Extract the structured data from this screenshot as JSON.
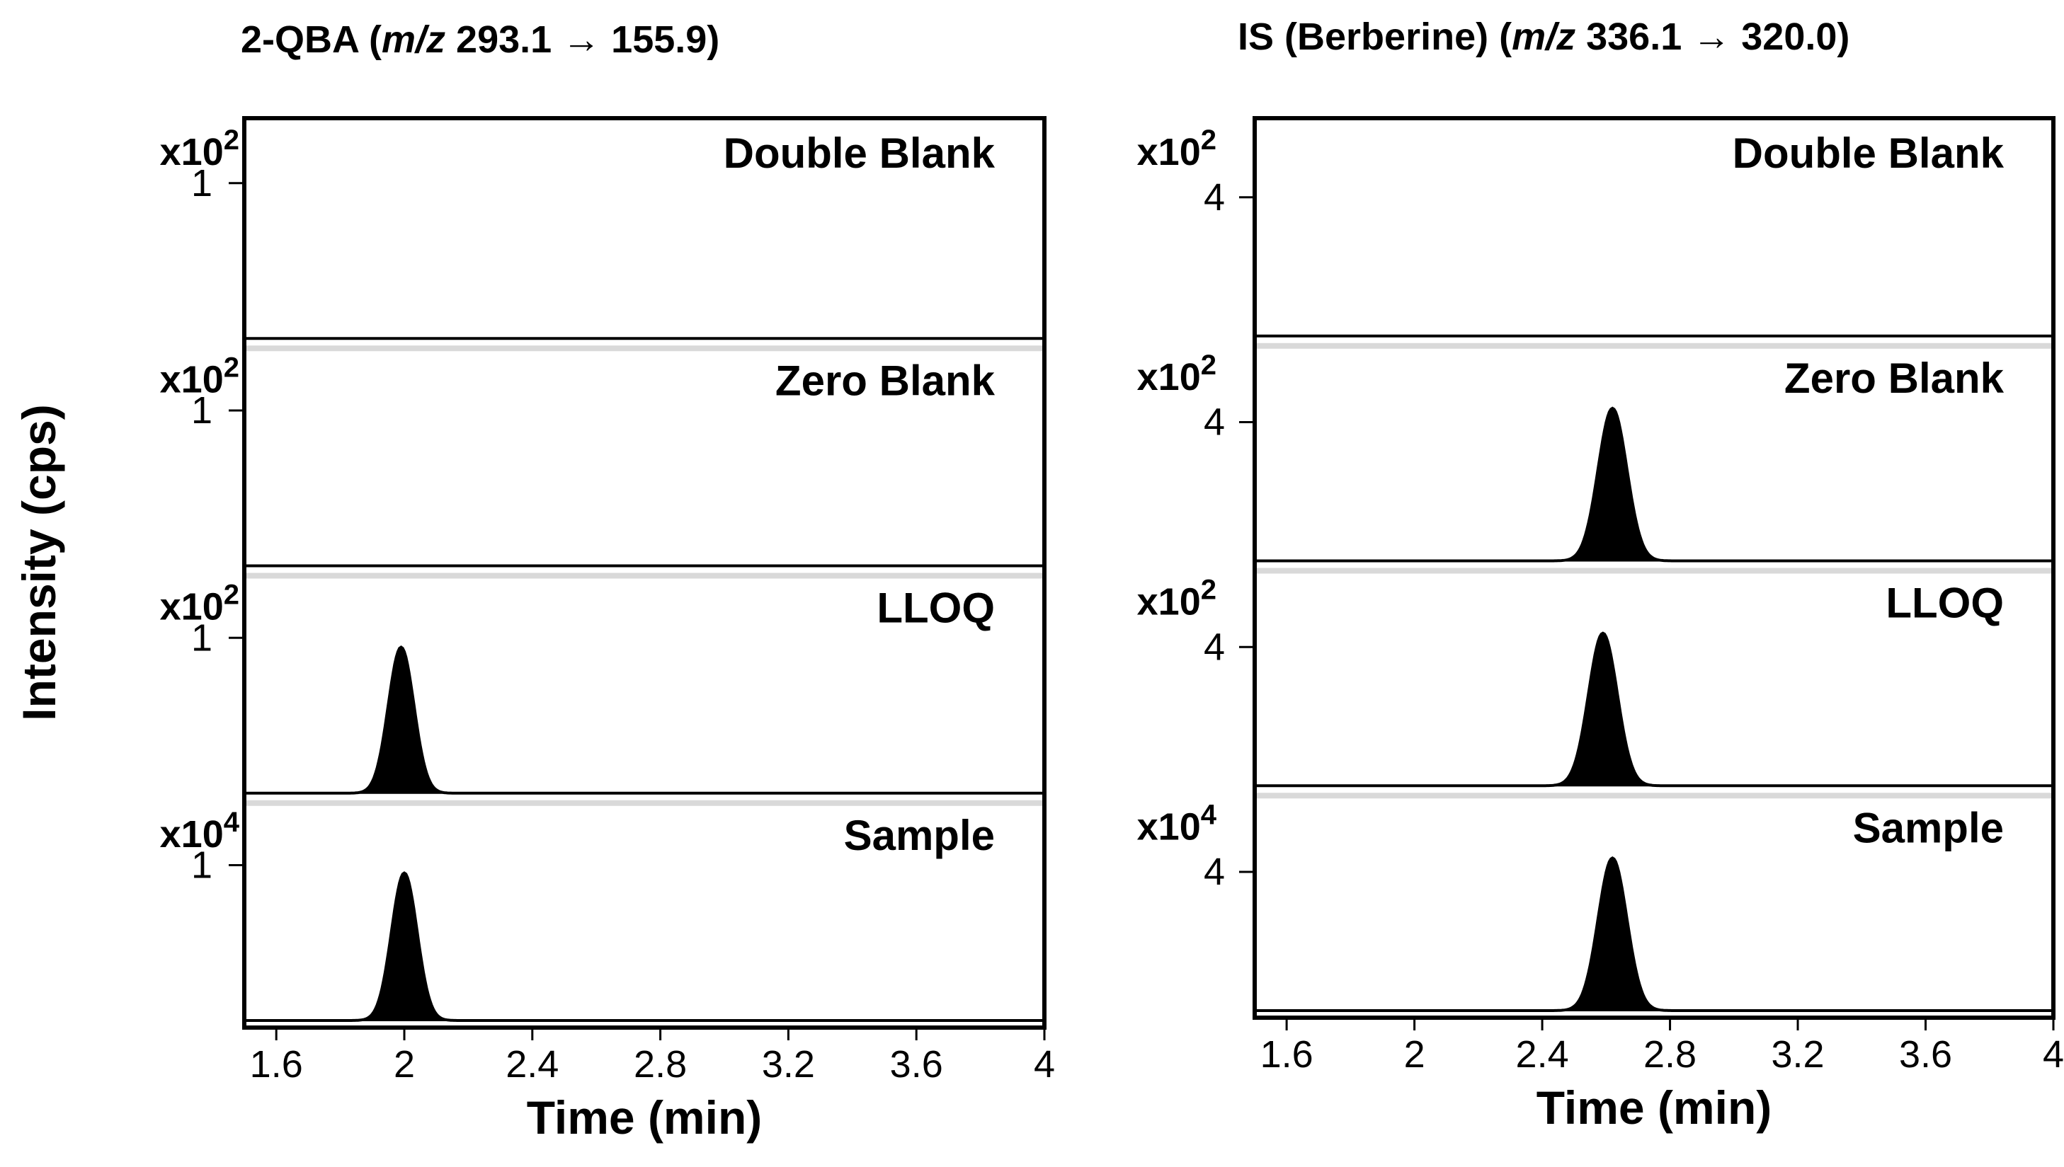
{
  "figure": {
    "ylabel": "Intensity (cps)"
  },
  "chart_data": [
    {
      "type": "line",
      "title_text": "2-QBA (",
      "title_italic": "m/z",
      "title_rest": " 293.1 → 155.9)",
      "xlabel": "Time (min)",
      "xlim": [
        1.5,
        4.0
      ],
      "xticks": [
        1.6,
        2,
        2.4,
        2.8,
        3.2,
        3.6,
        4
      ],
      "xtick_labels": [
        "1.6",
        "2",
        "2.4",
        "2.8",
        "3.2",
        "3.6",
        "4"
      ],
      "traces": [
        {
          "name": "Double Blank",
          "multiplier_base": "x10",
          "multiplier_exp": "2",
          "ytick_value": 1,
          "ytick_label": "1",
          "ylim": [
            0,
            1.4
          ],
          "peak": null
        },
        {
          "name": "Zero Blank",
          "multiplier_base": "x10",
          "multiplier_exp": "2",
          "ytick_value": 1,
          "ytick_label": "1",
          "ylim": [
            0,
            1.4
          ],
          "peak": null
        },
        {
          "name": "LLOQ",
          "multiplier_base": "x10",
          "multiplier_exp": "2",
          "ytick_value": 1,
          "ytick_label": "1",
          "ylim": [
            0,
            1.4
          ],
          "peak": {
            "rt": 1.99,
            "height": 0.94,
            "sigma": 0.04
          }
        },
        {
          "name": "Sample",
          "multiplier_base": "x10",
          "multiplier_exp": "4",
          "ytick_value": 1,
          "ytick_label": "1",
          "ylim": [
            0,
            1.4
          ],
          "peak": {
            "rt": 2.0,
            "height": 0.95,
            "sigma": 0.04
          }
        }
      ]
    },
    {
      "type": "line",
      "title_text": "IS (Berberine) (",
      "title_italic": "m/z",
      "title_rest": " 336.1 → 320.0)",
      "xlabel": "Time (min)",
      "xlim": [
        1.5,
        4.0
      ],
      "xticks": [
        1.6,
        2,
        2.4,
        2.8,
        3.2,
        3.6,
        4
      ],
      "xtick_labels": [
        "1.6",
        "2",
        "2.4",
        "2.8",
        "3.2",
        "3.6",
        "4"
      ],
      "traces": [
        {
          "name": "Double Blank",
          "multiplier_base": "x10",
          "multiplier_exp": "2",
          "ytick_value": 4,
          "ytick_label": "4",
          "ylim": [
            0,
            6.2
          ],
          "peak": null
        },
        {
          "name": "Zero Blank",
          "multiplier_base": "x10",
          "multiplier_exp": "2",
          "ytick_value": 4,
          "ytick_label": "4",
          "ylim": [
            0,
            6.2
          ],
          "peak": {
            "rt": 2.62,
            "height": 4.4,
            "sigma": 0.045
          }
        },
        {
          "name": "LLOQ",
          "multiplier_base": "x10",
          "multiplier_exp": "2",
          "ytick_value": 4,
          "ytick_label": "4",
          "ylim": [
            0,
            6.2
          ],
          "peak": {
            "rt": 2.59,
            "height": 4.4,
            "sigma": 0.045
          }
        },
        {
          "name": "Sample",
          "multiplier_base": "x10",
          "multiplier_exp": "4",
          "ytick_value": 4,
          "ytick_label": "4",
          "ylim": [
            0,
            6.2
          ],
          "peak": {
            "rt": 2.62,
            "height": 4.4,
            "sigma": 0.045
          }
        }
      ]
    }
  ]
}
